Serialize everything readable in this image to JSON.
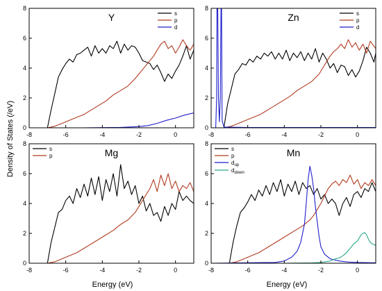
{
  "figure": {
    "ylabel": "Density of States (/eV)",
    "xlabel": "Energy (eV)"
  },
  "chart_data": [
    {
      "type": "line",
      "title": "Y",
      "xlim": [
        -8,
        1
      ],
      "ylim": [
        0,
        8
      ],
      "xticks": [
        -8,
        -6,
        -4,
        -2,
        0
      ],
      "yticks": [
        0,
        2,
        4,
        6,
        8
      ],
      "legend_position": "top-right",
      "series": [
        {
          "name": "s",
          "color": "#000000",
          "x": [
            -7.0,
            -6.8,
            -6.6,
            -6.4,
            -6.2,
            -6.0,
            -5.8,
            -5.6,
            -5.4,
            -5.2,
            -5.0,
            -4.8,
            -4.6,
            -4.4,
            -4.2,
            -4.0,
            -3.8,
            -3.6,
            -3.4,
            -3.2,
            -3.0,
            -2.8,
            -2.6,
            -2.4,
            -2.2,
            -2.0,
            -1.8,
            -1.6,
            -1.4,
            -1.2,
            -1.0,
            -0.8,
            -0.6,
            -0.4,
            -0.2,
            0.0,
            0.2,
            0.4,
            0.6,
            0.8,
            1.0
          ],
          "y": [
            0.0,
            1.2,
            2.3,
            3.4,
            3.9,
            4.3,
            4.6,
            4.4,
            4.9,
            5.0,
            5.2,
            5.4,
            4.8,
            5.5,
            5.0,
            5.3,
            5.0,
            5.5,
            5.3,
            5.8,
            5.0,
            5.6,
            5.2,
            5.5,
            5.4,
            5.0,
            4.5,
            4.4,
            4.3,
            3.9,
            4.2,
            3.7,
            3.1,
            3.6,
            3.3,
            3.8,
            4.2,
            4.8,
            5.5,
            4.6,
            5.2
          ]
        },
        {
          "name": "p",
          "color": "#b03a1e",
          "x": [
            -7.0,
            -6.6,
            -6.2,
            -5.8,
            -5.4,
            -5.0,
            -4.6,
            -4.2,
            -3.8,
            -3.4,
            -3.0,
            -2.6,
            -2.2,
            -2.0,
            -1.8,
            -1.6,
            -1.4,
            -1.2,
            -1.0,
            -0.8,
            -0.6,
            -0.4,
            -0.2,
            0.0,
            0.2,
            0.4,
            0.6,
            0.8,
            1.0
          ],
          "y": [
            0.0,
            0.1,
            0.3,
            0.5,
            0.7,
            0.9,
            1.2,
            1.5,
            1.8,
            2.2,
            2.5,
            2.8,
            3.3,
            3.6,
            3.9,
            4.2,
            4.5,
            4.8,
            5.2,
            5.6,
            5.8,
            5.3,
            5.5,
            5.0,
            5.4,
            5.9,
            5.5,
            5.2,
            5.6
          ]
        },
        {
          "name": "d",
          "color": "#1f1fcc",
          "x": [
            -7.0,
            -5.0,
            -3.0,
            -2.0,
            -1.5,
            -1.0,
            -0.5,
            0.0,
            0.5,
            1.0
          ],
          "y": [
            0.0,
            0.0,
            0.03,
            0.08,
            0.15,
            0.3,
            0.5,
            0.65,
            0.85,
            1.0
          ]
        }
      ]
    },
    {
      "type": "line",
      "title": "Zn",
      "xlim": [
        -8,
        1
      ],
      "ylim": [
        0,
        8
      ],
      "xticks": [
        -8,
        -6,
        -4,
        -2,
        0
      ],
      "yticks": [
        0,
        2,
        4,
        6,
        8
      ],
      "legend_position": "top-right",
      "series": [
        {
          "name": "s",
          "color": "#000000",
          "x": [
            -7.3,
            -7.1,
            -6.9,
            -6.7,
            -6.5,
            -6.3,
            -6.1,
            -5.9,
            -5.7,
            -5.5,
            -5.3,
            -5.1,
            -4.9,
            -4.7,
            -4.5,
            -4.3,
            -4.1,
            -3.9,
            -3.7,
            -3.5,
            -3.3,
            -3.1,
            -2.9,
            -2.7,
            -2.5,
            -2.3,
            -2.1,
            -1.9,
            -1.7,
            -1.5,
            -1.3,
            -1.1,
            -0.9,
            -0.7,
            -0.5,
            -0.3,
            -0.1,
            0.1,
            0.3,
            0.5,
            0.7,
            0.9,
            1.0
          ],
          "y": [
            0.0,
            1.6,
            2.6,
            3.6,
            3.9,
            4.3,
            4.2,
            4.6,
            4.4,
            4.8,
            4.6,
            5.0,
            4.8,
            5.1,
            4.6,
            5.0,
            4.6,
            5.2,
            4.5,
            5.0,
            4.7,
            5.1,
            4.5,
            5.0,
            4.6,
            5.3,
            4.4,
            5.0,
            4.6,
            4.0,
            4.3,
            3.7,
            4.2,
            4.1,
            3.5,
            3.9,
            3.4,
            3.8,
            4.5,
            5.4,
            5.0,
            4.4,
            5.0
          ]
        },
        {
          "name": "p",
          "color": "#b03a1e",
          "x": [
            -7.3,
            -6.9,
            -6.5,
            -6.1,
            -5.7,
            -5.3,
            -4.9,
            -4.5,
            -4.1,
            -3.7,
            -3.3,
            -2.9,
            -2.5,
            -2.1,
            -1.9,
            -1.7,
            -1.5,
            -1.3,
            -1.1,
            -0.9,
            -0.7,
            -0.5,
            -0.3,
            -0.1,
            0.1,
            0.3,
            0.5,
            0.7,
            1.0
          ],
          "y": [
            0.0,
            0.1,
            0.3,
            0.5,
            0.7,
            0.9,
            1.2,
            1.5,
            1.8,
            2.1,
            2.5,
            2.8,
            3.1,
            3.6,
            4.0,
            4.4,
            4.8,
            5.1,
            5.3,
            5.6,
            5.3,
            5.9,
            5.4,
            5.7,
            5.2,
            5.6,
            5.0,
            5.8,
            5.3
          ]
        },
        {
          "name": "d",
          "color": "#1f1fcc",
          "x": [
            -8.0,
            -7.75,
            -7.7,
            -7.68,
            -7.64,
            -7.6,
            -7.55,
            -7.5,
            -7.46,
            -7.43,
            -7.4,
            -7.3,
            -6.0,
            -4.0,
            -2.0,
            0.0,
            1.0
          ],
          "y": [
            0.0,
            0.0,
            2.0,
            8.0,
            8.0,
            2.0,
            0.4,
            2.0,
            8.0,
            8.0,
            0.5,
            0.05,
            0.02,
            0.02,
            0.02,
            0.02,
            0.02
          ]
        }
      ]
    },
    {
      "type": "line",
      "title": "Mg",
      "xlim": [
        -8,
        1
      ],
      "ylim": [
        0,
        8
      ],
      "xticks": [
        -8,
        -6,
        -4,
        -2,
        0
      ],
      "yticks": [
        0,
        2,
        4,
        6,
        8
      ],
      "legend_position": "top-left",
      "series": [
        {
          "name": "s",
          "color": "#000000",
          "x": [
            -7.0,
            -6.8,
            -6.6,
            -6.4,
            -6.2,
            -6.0,
            -5.8,
            -5.6,
            -5.4,
            -5.2,
            -5.0,
            -4.8,
            -4.6,
            -4.4,
            -4.2,
            -4.0,
            -3.8,
            -3.6,
            -3.4,
            -3.2,
            -3.0,
            -2.8,
            -2.6,
            -2.4,
            -2.2,
            -2.0,
            -1.8,
            -1.6,
            -1.4,
            -1.2,
            -1.0,
            -0.8,
            -0.6,
            -0.4,
            -0.2,
            0.0,
            0.2,
            0.4,
            0.6,
            0.8,
            1.0
          ],
          "y": [
            0.0,
            1.4,
            2.4,
            3.4,
            3.6,
            4.2,
            4.5,
            4.0,
            5.0,
            4.4,
            5.3,
            4.5,
            5.7,
            4.6,
            5.8,
            4.2,
            5.6,
            4.8,
            6.0,
            4.5,
            6.6,
            5.0,
            5.5,
            4.6,
            5.2,
            4.0,
            4.5,
            3.5,
            4.0,
            3.2,
            3.4,
            2.8,
            3.8,
            3.2,
            4.0,
            3.6,
            4.8,
            4.2,
            4.5,
            4.2,
            4.0
          ]
        },
        {
          "name": "p",
          "color": "#b03a1e",
          "x": [
            -7.0,
            -6.6,
            -6.2,
            -5.8,
            -5.4,
            -5.0,
            -4.6,
            -4.2,
            -3.8,
            -3.4,
            -3.0,
            -2.6,
            -2.2,
            -2.0,
            -1.8,
            -1.6,
            -1.4,
            -1.2,
            -1.0,
            -0.8,
            -0.6,
            -0.4,
            -0.2,
            0.0,
            0.2,
            0.4,
            0.6,
            0.8,
            1.0
          ],
          "y": [
            0.0,
            0.1,
            0.3,
            0.5,
            0.7,
            1.0,
            1.3,
            1.6,
            1.9,
            2.2,
            2.6,
            2.9,
            3.4,
            3.8,
            4.2,
            4.6,
            5.0,
            5.6,
            4.8,
            5.9,
            5.2,
            6.0,
            5.0,
            5.5,
            4.8,
            5.2,
            5.0,
            5.4,
            4.8
          ]
        }
      ]
    },
    {
      "type": "line",
      "title": "Mn",
      "xlim": [
        -8,
        1
      ],
      "ylim": [
        0,
        8
      ],
      "xticks": [
        -8,
        -6,
        -4,
        -2,
        0
      ],
      "yticks": [
        0,
        2,
        4,
        6,
        8
      ],
      "legend_position": "top-left",
      "series": [
        {
          "name": "s",
          "color": "#000000",
          "x": [
            -7.0,
            -6.8,
            -6.6,
            -6.4,
            -6.2,
            -6.0,
            -5.8,
            -5.6,
            -5.4,
            -5.2,
            -5.0,
            -4.8,
            -4.6,
            -4.4,
            -4.2,
            -4.0,
            -3.8,
            -3.6,
            -3.4,
            -3.2,
            -3.0,
            -2.8,
            -2.6,
            -2.4,
            -2.2,
            -2.0,
            -1.8,
            -1.6,
            -1.4,
            -1.2,
            -1.0,
            -0.8,
            -0.6,
            -0.4,
            -0.2,
            0.0,
            0.2,
            0.4,
            0.6,
            0.8,
            1.0
          ],
          "y": [
            0.0,
            1.4,
            2.5,
            3.4,
            3.7,
            4.1,
            4.6,
            4.2,
            4.9,
            4.5,
            5.2,
            4.6,
            5.4,
            4.8,
            5.6,
            4.5,
            5.3,
            4.8,
            5.5,
            4.6,
            5.4,
            5.0,
            5.2,
            4.6,
            5.0,
            4.3,
            4.6,
            4.0,
            4.3,
            4.0,
            3.2,
            4.0,
            4.4,
            3.8,
            4.6,
            4.8,
            4.4,
            5.0,
            4.8,
            5.4,
            4.8
          ]
        },
        {
          "name": "p",
          "color": "#b03a1e",
          "x": [
            -7.0,
            -6.6,
            -6.2,
            -5.8,
            -5.4,
            -5.0,
            -4.6,
            -4.2,
            -3.8,
            -3.4,
            -3.0,
            -2.6,
            -2.4,
            -2.2,
            -2.0,
            -1.8,
            -1.6,
            -1.4,
            -1.2,
            -1.0,
            -0.8,
            -0.6,
            -0.4,
            -0.2,
            0.0,
            0.2,
            0.4,
            0.6,
            0.8,
            1.0
          ],
          "y": [
            0.0,
            0.1,
            0.3,
            0.5,
            0.7,
            1.0,
            1.3,
            1.6,
            1.9,
            2.2,
            2.5,
            2.9,
            3.2,
            3.6,
            4.0,
            4.5,
            5.0,
            5.3,
            5.5,
            5.2,
            5.6,
            5.4,
            5.9,
            5.3,
            5.6,
            5.0,
            5.4,
            5.2,
            5.6,
            5.2
          ]
        },
        {
          "name": "d",
          "subscript": "up",
          "color": "#1f1fcc",
          "x": [
            -8.0,
            -4.5,
            -4.0,
            -3.6,
            -3.3,
            -3.1,
            -2.9,
            -2.8,
            -2.7,
            -2.6,
            -2.5,
            -2.4,
            -2.3,
            -2.2,
            -2.1,
            -2.0,
            -1.8,
            -1.5,
            -1.0,
            -0.5,
            0.0,
            1.0
          ],
          "y": [
            0.0,
            0.05,
            0.15,
            0.4,
            0.8,
            1.4,
            2.6,
            4.0,
            5.6,
            6.5,
            5.9,
            5.0,
            3.8,
            2.8,
            1.8,
            1.1,
            0.6,
            0.3,
            0.15,
            0.08,
            0.05,
            0.03
          ]
        },
        {
          "name": "d",
          "subscript": "down",
          "color": "#2aa88a",
          "x": [
            -8.0,
            -4.0,
            -2.5,
            -2.0,
            -1.5,
            -1.2,
            -1.0,
            -0.8,
            -0.6,
            -0.4,
            -0.2,
            0.0,
            0.2,
            0.3,
            0.4,
            0.5,
            0.6,
            0.7,
            0.8,
            1.0
          ],
          "y": [
            0.0,
            0.0,
            0.02,
            0.05,
            0.15,
            0.3,
            0.35,
            0.5,
            0.7,
            1.0,
            1.3,
            1.5,
            1.9,
            2.0,
            2.05,
            1.9,
            1.6,
            1.4,
            1.3,
            1.2
          ]
        }
      ]
    }
  ]
}
